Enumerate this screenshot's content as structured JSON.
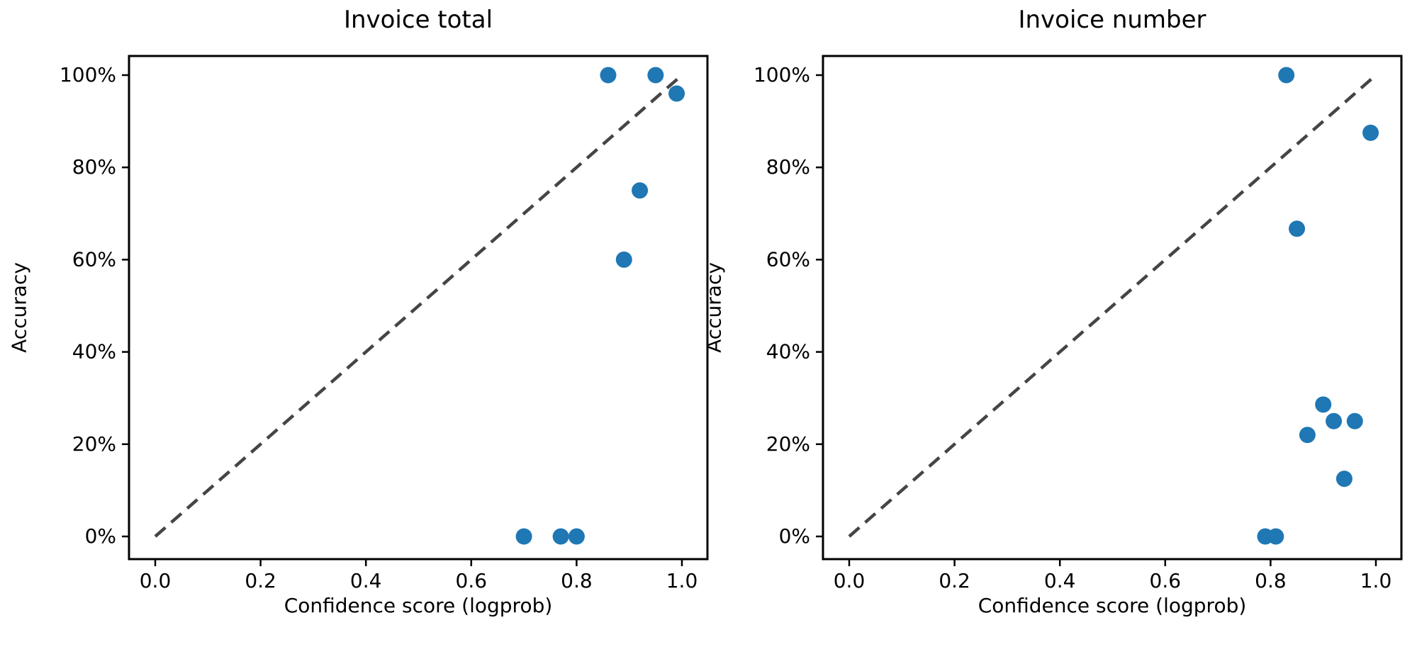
{
  "figure": {
    "background": "#ffffff",
    "text_color": "#000000",
    "point_color": "#1f77b4",
    "diagonal_line_color": "#454545",
    "spine_color": "#000000"
  },
  "chart_data": [
    {
      "type": "scatter",
      "title": "Invoice total",
      "xlabel": "Confidence score (logprob)",
      "ylabel": "Accuracy",
      "xlim": [
        0,
        1
      ],
      "ylim": [
        0,
        100
      ],
      "grid": false,
      "legend": "none",
      "xticks": [
        0.0,
        0.2,
        0.4,
        0.6,
        0.8,
        1.0
      ],
      "xtick_labels": [
        "0.0",
        "0.2",
        "0.4",
        "0.6",
        "0.8",
        "1.0"
      ],
      "yticks": [
        0,
        20,
        40,
        60,
        80,
        100
      ],
      "ytick_labels": [
        "0%",
        "20%",
        "40%",
        "60%",
        "80%",
        "100%"
      ],
      "identity_line": {
        "from": [
          0,
          0
        ],
        "to": [
          1,
          100
        ],
        "style": "dashed"
      },
      "points": [
        {
          "x": 0.86,
          "y": 100
        },
        {
          "x": 0.95,
          "y": 100
        },
        {
          "x": 0.99,
          "y": 96
        },
        {
          "x": 0.92,
          "y": 75
        },
        {
          "x": 0.89,
          "y": 60
        },
        {
          "x": 0.7,
          "y": 0
        },
        {
          "x": 0.77,
          "y": 0
        },
        {
          "x": 0.8,
          "y": 0
        }
      ]
    },
    {
      "type": "scatter",
      "title": "Invoice number",
      "xlabel": "Confidence score (logprob)",
      "ylabel": "Accuracy",
      "xlim": [
        0,
        1
      ],
      "ylim": [
        0,
        100
      ],
      "grid": false,
      "legend": "none",
      "xticks": [
        0.0,
        0.2,
        0.4,
        0.6,
        0.8,
        1.0
      ],
      "xtick_labels": [
        "0.0",
        "0.2",
        "0.4",
        "0.6",
        "0.8",
        "1.0"
      ],
      "yticks": [
        0,
        20,
        40,
        60,
        80,
        100
      ],
      "ytick_labels": [
        "0%",
        "20%",
        "40%",
        "60%",
        "80%",
        "100%"
      ],
      "identity_line": {
        "from": [
          0,
          0
        ],
        "to": [
          1,
          100
        ],
        "style": "dashed"
      },
      "points": [
        {
          "x": 0.83,
          "y": 100
        },
        {
          "x": 0.99,
          "y": 87.5
        },
        {
          "x": 0.85,
          "y": 66.7
        },
        {
          "x": 0.9,
          "y": 28.6
        },
        {
          "x": 0.92,
          "y": 25
        },
        {
          "x": 0.96,
          "y": 25
        },
        {
          "x": 0.87,
          "y": 22
        },
        {
          "x": 0.94,
          "y": 12.5
        },
        {
          "x": 0.79,
          "y": 0
        },
        {
          "x": 0.81,
          "y": 0
        }
      ]
    }
  ]
}
